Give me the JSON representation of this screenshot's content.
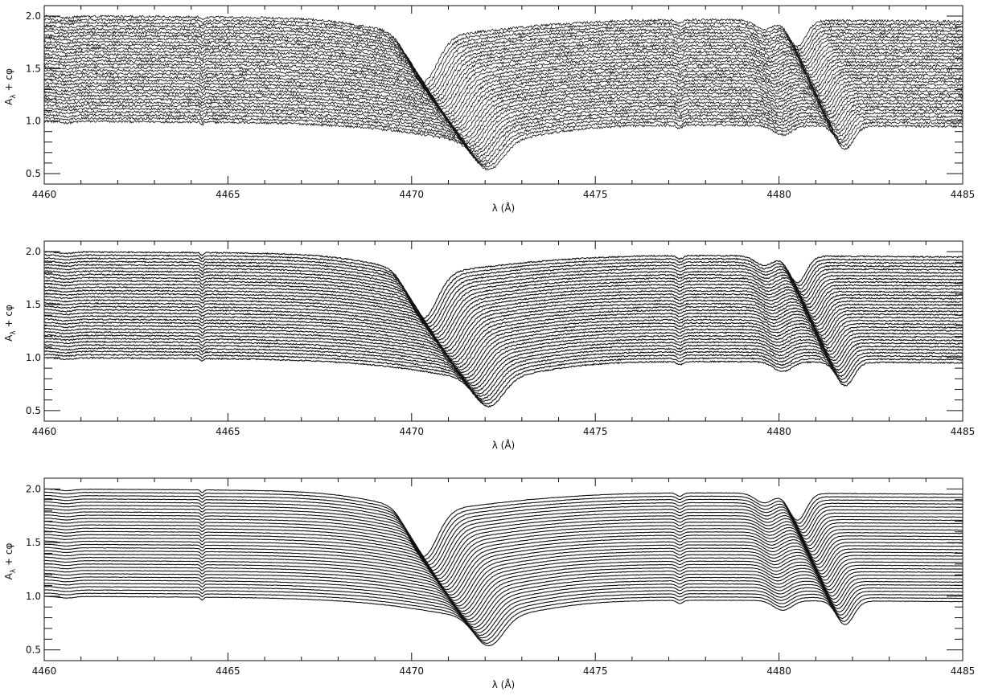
{
  "chart_data": [
    {
      "type": "line",
      "title": "",
      "xlabel": "λ (Å)",
      "ylabel": "A_λ + cφ",
      "xlim": [
        4460,
        4485
      ],
      "ylim": [
        0.4,
        2.1
      ],
      "x_ticks": [
        4460,
        4465,
        4470,
        4475,
        4480,
        4485
      ],
      "y_ticks": [
        0.5,
        1.0,
        1.5,
        2.0
      ],
      "grid": false,
      "legend": "none",
      "line_color": "#111111",
      "series_count": 34,
      "series_offset_range": [
        0.0,
        1.0
      ],
      "noise_level": 0.012,
      "features": [
        {
          "line_center_A": 4471.2,
          "approx_depth_bottom": 0.27,
          "approx_depth_top": 0.45
        },
        {
          "line_center_A": 4481.2,
          "approx_depth_bottom": 0.22,
          "approx_depth_top": 0.25
        }
      ]
    },
    {
      "type": "line",
      "title": "",
      "xlabel": "λ (Å)",
      "ylabel": "A_λ + cφ",
      "xlim": [
        4460,
        4485
      ],
      "ylim": [
        0.4,
        2.1
      ],
      "x_ticks": [
        4460,
        4465,
        4470,
        4475,
        4480,
        4485
      ],
      "y_ticks": [
        0.5,
        1.0,
        1.5,
        2.0
      ],
      "grid": false,
      "legend": "none",
      "line_color": "#111111",
      "series_count": 34,
      "series_offset_range": [
        0.0,
        1.0
      ],
      "noise_level": 0.006,
      "features": [
        {
          "line_center_A": 4471.2,
          "approx_depth_bottom": 0.27,
          "approx_depth_top": 0.45
        },
        {
          "line_center_A": 4481.2,
          "approx_depth_bottom": 0.22,
          "approx_depth_top": 0.25
        }
      ]
    },
    {
      "type": "line",
      "title": "",
      "xlabel": "λ (Å)",
      "ylabel": "A_λ + cφ",
      "xlim": [
        4460,
        4485
      ],
      "ylim": [
        0.4,
        2.1
      ],
      "x_ticks": [
        4460,
        4465,
        4470,
        4475,
        4480,
        4485
      ],
      "y_ticks": [
        0.5,
        1.0,
        1.5,
        2.0
      ],
      "grid": false,
      "legend": "none",
      "line_color": "#111111",
      "series_count": 34,
      "series_offset_range": [
        0.0,
        1.0
      ],
      "noise_level": 0.002,
      "features": [
        {
          "line_center_A": 4471.2,
          "approx_depth_bottom": 0.27,
          "approx_depth_top": 0.45
        },
        {
          "line_center_A": 4481.2,
          "approx_depth_bottom": 0.22,
          "approx_depth_top": 0.25
        }
      ]
    }
  ]
}
